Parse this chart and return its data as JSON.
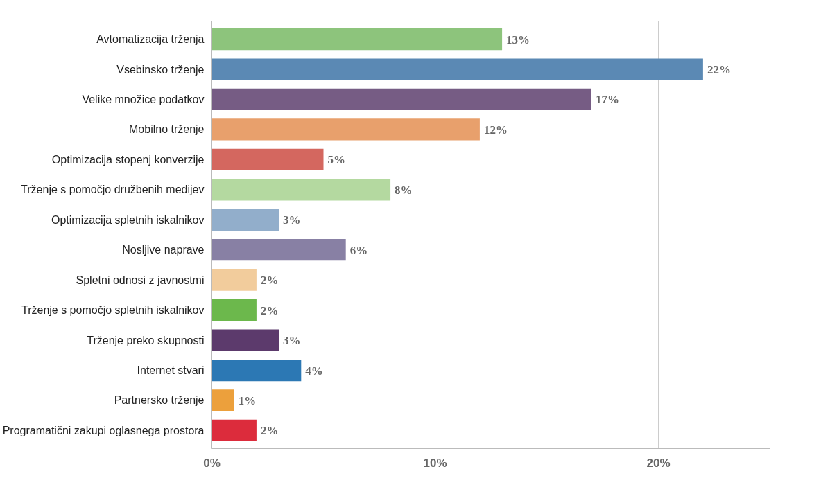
{
  "chart_data": {
    "type": "bar",
    "orientation": "horizontal",
    "categories": [
      "Avtomatizacija trženja",
      "Vsebinsko trženje",
      "Velike množice podatkov",
      "Mobilno trženje",
      "Optimizacija stopenj konverzije",
      "Trženje s pomočjo družbenih medijev",
      "Optimizacija spletnih iskalnikov",
      "Nosljive naprave",
      "Spletni odnosi z javnostmi",
      "Trženje s pomočjo spletnih iskalnikov",
      "Trženje preko skupnosti",
      "Internet stvari",
      "Partnersko trženje",
      "Programatični zakupi oglasnega prostora"
    ],
    "values": [
      13,
      22,
      17,
      12,
      5,
      8,
      3,
      6,
      2,
      2,
      3,
      4,
      1,
      2
    ],
    "value_labels": [
      "13%",
      "22%",
      "17%",
      "12%",
      "5%",
      "8%",
      "3%",
      "6%",
      "2%",
      "2%",
      "3%",
      "4%",
      "1%",
      "2%"
    ],
    "colors": [
      "#8dc47c",
      "#5b89b4",
      "#765c84",
      "#e8a06c",
      "#d4675f",
      "#b4d9a0",
      "#92aecb",
      "#8880a4",
      "#f2cc9c",
      "#6cb84c",
      "#5c3a6c",
      "#2c78b4",
      "#eca03c",
      "#dc2c3c"
    ],
    "xlim": [
      0,
      25
    ],
    "xticks": [
      {
        "value": 0,
        "label": "0%"
      },
      {
        "value": 10,
        "label": "10%"
      },
      {
        "value": 20,
        "label": "20%"
      }
    ],
    "grid": "x"
  }
}
